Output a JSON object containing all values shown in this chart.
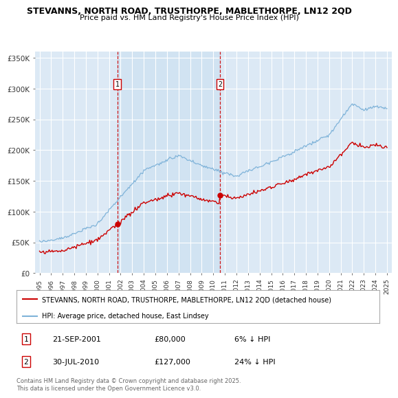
{
  "title1": "STEVANNS, NORTH ROAD, TRUSTHORPE, MABLETHORPE, LN12 2QD",
  "title2": "Price paid vs. HM Land Registry's House Price Index (HPI)",
  "ylabel_ticks": [
    "£0",
    "£50K",
    "£100K",
    "£150K",
    "£200K",
    "£250K",
    "£300K",
    "£350K"
  ],
  "ytick_vals": [
    0,
    50000,
    100000,
    150000,
    200000,
    250000,
    300000,
    350000
  ],
  "ylim": [
    0,
    360000
  ],
  "xtick_years": [
    1995,
    1996,
    1997,
    1998,
    1999,
    2000,
    2001,
    2002,
    2003,
    2004,
    2005,
    2006,
    2007,
    2008,
    2009,
    2010,
    2011,
    2012,
    2013,
    2014,
    2015,
    2016,
    2017,
    2018,
    2019,
    2020,
    2021,
    2022,
    2023,
    2024,
    2025
  ],
  "bg_color": "#dce9f5",
  "grid_color": "#ffffff",
  "hpi_color": "#7fb3d9",
  "price_color": "#cc0000",
  "sale1_year": 2001.72,
  "sale1_price": 80000,
  "sale1_label": "1",
  "sale1_date": "21-SEP-2001",
  "sale1_amount": "£80,000",
  "sale1_pct": "6% ↓ HPI",
  "sale2_year": 2010.58,
  "sale2_price": 127000,
  "sale2_label": "2",
  "sale2_date": "30-JUL-2010",
  "sale2_amount": "£127,000",
  "sale2_pct": "24% ↓ HPI",
  "legend_line1": "STEVANNS, NORTH ROAD, TRUSTHORPE, MABLETHORPE, LN12 2QD (detached house)",
  "legend_line2": "HPI: Average price, detached house, East Lindsey",
  "footnote": "Contains HM Land Registry data © Crown copyright and database right 2025.\nThis data is licensed under the Open Government Licence v3.0."
}
